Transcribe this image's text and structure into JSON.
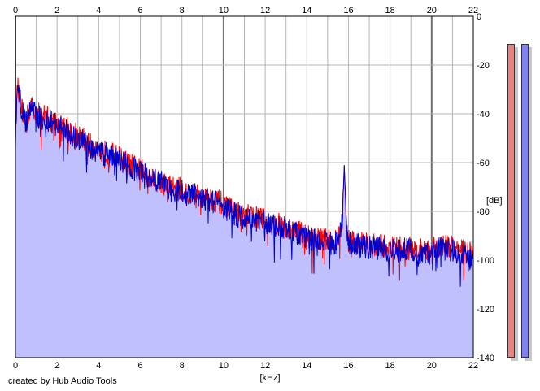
{
  "credit": "created by Hub Audio Tools",
  "meters": {
    "left_color": "#f08080",
    "right_color": "#8080f0"
  },
  "chart_data": {
    "type": "area",
    "xlabel": "[kHz]",
    "ylabel": "[dB]",
    "xlim": [
      0,
      22
    ],
    "ylim": [
      -140,
      0
    ],
    "xticks": [
      0,
      2,
      4,
      6,
      8,
      10,
      12,
      14,
      16,
      18,
      20,
      22
    ],
    "yticks": [
      0,
      -20,
      -40,
      -60,
      -80,
      -100,
      -120,
      -140
    ],
    "grid": true,
    "colors": {
      "fill": "#c0c0ff",
      "left_channel": "#ff0000",
      "right_channel": "#0000cc",
      "grid": "#b4b4b4",
      "major_grid": "#707070"
    },
    "series": [
      {
        "color": "#ff0000",
        "x": [
          0,
          0.1,
          0.3,
          0.5,
          0.8,
          1.0,
          1.5,
          2.0,
          2.5,
          3.0,
          3.5,
          4.0,
          4.5,
          5.0,
          5.5,
          6.0,
          6.5,
          7.0,
          7.5,
          8.0,
          8.5,
          9.0,
          9.5,
          10.0,
          10.5,
          11.0,
          11.5,
          12.0,
          12.5,
          13.0,
          13.5,
          14.0,
          14.5,
          15.0,
          15.5,
          15.7,
          15.8,
          15.9,
          16.0,
          16.5,
          17.0,
          17.5,
          18.0,
          18.5,
          19.0,
          19.5,
          20.0,
          20.5,
          21.0,
          21.5,
          22.0
        ],
        "values": [
          -48,
          -27,
          -38,
          -42,
          -37,
          -40,
          -41,
          -44,
          -46,
          -49,
          -52,
          -55,
          -56,
          -58,
          -61,
          -63,
          -66,
          -68,
          -70,
          -71,
          -73,
          -74,
          -75,
          -77,
          -80,
          -82,
          -82,
          -84,
          -85,
          -87,
          -88,
          -90,
          -91,
          -92,
          -92,
          -84,
          -62,
          -84,
          -92,
          -93,
          -94,
          -94,
          -95,
          -95,
          -95,
          -96,
          -95,
          -94,
          -95,
          -96,
          -98
        ]
      },
      {
        "color": "#0000cc",
        "x": [
          0,
          0.1,
          0.3,
          0.5,
          0.8,
          1.0,
          1.5,
          2.0,
          2.5,
          3.0,
          3.5,
          4.0,
          4.5,
          5.0,
          5.5,
          6.0,
          6.5,
          7.0,
          7.5,
          8.0,
          8.5,
          9.0,
          9.5,
          10.0,
          10.5,
          11.0,
          11.5,
          12.0,
          12.5,
          13.0,
          13.5,
          14.0,
          14.5,
          15.0,
          15.5,
          15.7,
          15.8,
          15.9,
          16.0,
          16.5,
          17.0,
          17.5,
          18.0,
          18.5,
          19.0,
          19.5,
          20.0,
          20.5,
          21.0,
          21.5,
          22.0
        ],
        "values": [
          -50,
          -28,
          -39,
          -43,
          -38,
          -41,
          -42,
          -45,
          -47,
          -50,
          -53,
          -56,
          -57,
          -59,
          -62,
          -64,
          -67,
          -68,
          -71,
          -72,
          -73,
          -75,
          -76,
          -78,
          -81,
          -83,
          -83,
          -85,
          -86,
          -88,
          -89,
          -91,
          -92,
          -93,
          -93,
          -85,
          -61,
          -85,
          -93,
          -94,
          -95,
          -95,
          -96,
          -96,
          -96,
          -97,
          -96,
          -95,
          -96,
          -98,
          -101
        ]
      }
    ]
  }
}
